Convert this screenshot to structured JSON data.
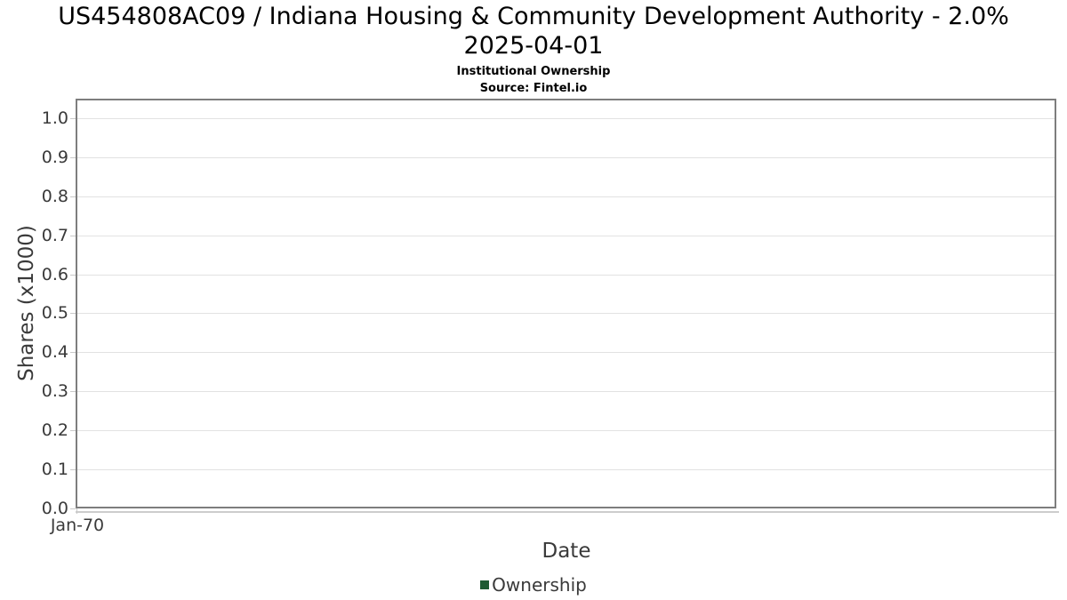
{
  "header": {
    "title_line1": "US454808AC09 / Indiana Housing & Community Development Authority - 2.0%",
    "title_line2": "2025-04-01",
    "subtitle": "Institutional Ownership",
    "source": "Source: Fintel.io"
  },
  "chart_data": {
    "type": "line",
    "title": "US454808AC09 / Indiana Housing & Community Development Authority - 2.0% 2025-04-01",
    "subtitle": "Institutional Ownership",
    "annotation": "Source: Fintel.io",
    "xlabel": "Date",
    "ylabel": "Shares (x1000)",
    "x": [],
    "series": [
      {
        "name": "Ownership",
        "color": "#1e5b33",
        "values": []
      }
    ],
    "xticks": [
      "Jan-70"
    ],
    "yticks": [
      "0.0",
      "0.1",
      "0.2",
      "0.3",
      "0.4",
      "0.5",
      "0.6",
      "0.7",
      "0.8",
      "0.9",
      "1.0"
    ],
    "ylim": [
      0,
      1.05
    ],
    "grid": "horizontal",
    "legend_position": "bottom"
  },
  "colors": {
    "plot_border": "#7e7e7e",
    "gridline": "#e2e2e2",
    "tick": "#c9c9c9",
    "axis_text": "#3a3a3a",
    "title_text": "#000000",
    "legend_marker": "#1e5b33"
  },
  "legend": {
    "items": [
      {
        "label": "Ownership",
        "color": "#1e5b33"
      }
    ]
  }
}
